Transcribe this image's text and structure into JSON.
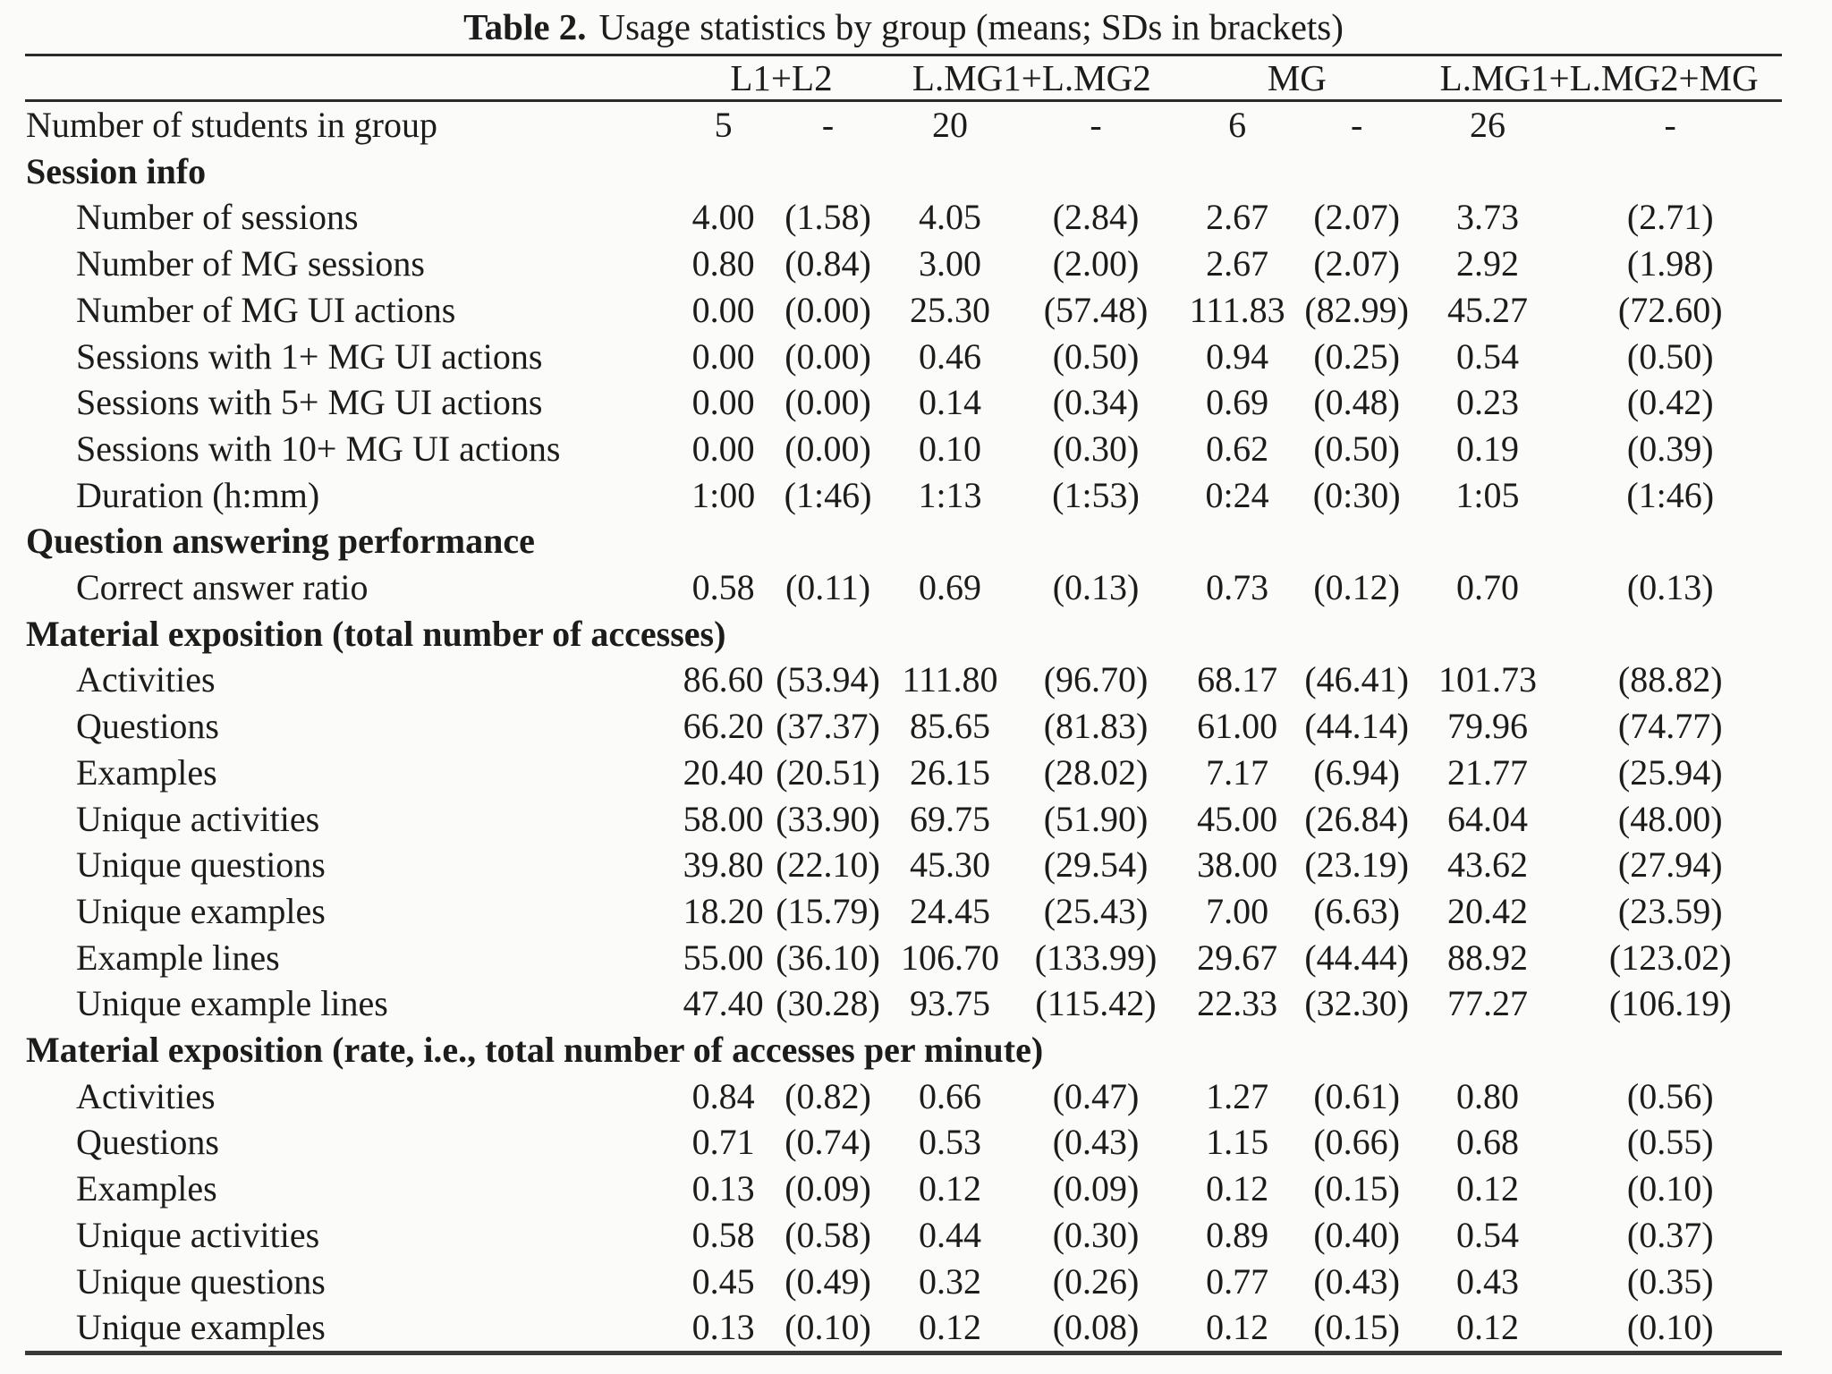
{
  "title": {
    "label": "Table 2.",
    "text": "Usage statistics by group (means; SDs in brackets)"
  },
  "columns": [
    "L1+L2",
    "L.MG1+L.MG2",
    "MG",
    "L.MG1+L.MG2+MG"
  ],
  "rows": [
    {
      "kind": "data",
      "indent": 0,
      "label": "Number of students in group",
      "values": [
        "5",
        "-",
        "20",
        "-",
        "6",
        "-",
        "26",
        "-"
      ]
    },
    {
      "kind": "section",
      "label": "Session info"
    },
    {
      "kind": "data",
      "indent": 1,
      "label": "Number of sessions",
      "values": [
        "4.00",
        "(1.58)",
        "4.05",
        "(2.84)",
        "2.67",
        "(2.07)",
        "3.73",
        "(2.71)"
      ]
    },
    {
      "kind": "data",
      "indent": 1,
      "label": "Number of MG sessions",
      "values": [
        "0.80",
        "(0.84)",
        "3.00",
        "(2.00)",
        "2.67",
        "(2.07)",
        "2.92",
        "(1.98)"
      ]
    },
    {
      "kind": "data",
      "indent": 1,
      "label": "Number of MG UI actions",
      "values": [
        "0.00",
        "(0.00)",
        "25.30",
        "(57.48)",
        "111.83",
        "(82.99)",
        "45.27",
        "(72.60)"
      ]
    },
    {
      "kind": "data",
      "indent": 1,
      "label": "Sessions with 1+ MG UI actions",
      "values": [
        "0.00",
        "(0.00)",
        "0.46",
        "(0.50)",
        "0.94",
        "(0.25)",
        "0.54",
        "(0.50)"
      ]
    },
    {
      "kind": "data",
      "indent": 1,
      "label": "Sessions with 5+ MG UI actions",
      "values": [
        "0.00",
        "(0.00)",
        "0.14",
        "(0.34)",
        "0.69",
        "(0.48)",
        "0.23",
        "(0.42)"
      ]
    },
    {
      "kind": "data",
      "indent": 1,
      "label": "Sessions with 10+ MG UI actions",
      "values": [
        "0.00",
        "(0.00)",
        "0.10",
        "(0.30)",
        "0.62",
        "(0.50)",
        "0.19",
        "(0.39)"
      ]
    },
    {
      "kind": "data",
      "indent": 1,
      "label": "Duration (h:mm)",
      "values": [
        "1:00",
        "(1:46)",
        "1:13",
        "(1:53)",
        "0:24",
        "(0:30)",
        "1:05",
        "(1:46)"
      ]
    },
    {
      "kind": "section",
      "label": "Question answering performance"
    },
    {
      "kind": "data",
      "indent": 1,
      "label": "Correct answer ratio",
      "values": [
        "0.58",
        "(0.11)",
        "0.69",
        "(0.13)",
        "0.73",
        "(0.12)",
        "0.70",
        "(0.13)"
      ]
    },
    {
      "kind": "section",
      "label": "Material exposition (total number of accesses)"
    },
    {
      "kind": "data",
      "indent": 1,
      "label": "Activities",
      "values": [
        "86.60",
        "(53.94)",
        "111.80",
        "(96.70)",
        "68.17",
        "(46.41)",
        "101.73",
        "(88.82)"
      ]
    },
    {
      "kind": "data",
      "indent": 1,
      "label": "Questions",
      "values": [
        "66.20",
        "(37.37)",
        "85.65",
        "(81.83)",
        "61.00",
        "(44.14)",
        "79.96",
        "(74.77)"
      ]
    },
    {
      "kind": "data",
      "indent": 1,
      "label": "Examples",
      "values": [
        "20.40",
        "(20.51)",
        "26.15",
        "(28.02)",
        "7.17",
        "(6.94)",
        "21.77",
        "(25.94)"
      ]
    },
    {
      "kind": "data",
      "indent": 1,
      "label": "Unique activities",
      "values": [
        "58.00",
        "(33.90)",
        "69.75",
        "(51.90)",
        "45.00",
        "(26.84)",
        "64.04",
        "(48.00)"
      ]
    },
    {
      "kind": "data",
      "indent": 1,
      "label": "Unique questions",
      "values": [
        "39.80",
        "(22.10)",
        "45.30",
        "(29.54)",
        "38.00",
        "(23.19)",
        "43.62",
        "(27.94)"
      ]
    },
    {
      "kind": "data",
      "indent": 1,
      "label": "Unique examples",
      "values": [
        "18.20",
        "(15.79)",
        "24.45",
        "(25.43)",
        "7.00",
        "(6.63)",
        "20.42",
        "(23.59)"
      ]
    },
    {
      "kind": "data",
      "indent": 1,
      "label": "Example lines",
      "values": [
        "55.00",
        "(36.10)",
        "106.70",
        "(133.99)",
        "29.67",
        "(44.44)",
        "88.92",
        "(123.02)"
      ]
    },
    {
      "kind": "data",
      "indent": 1,
      "label": "Unique example lines",
      "values": [
        "47.40",
        "(30.28)",
        "93.75",
        "(115.42)",
        "22.33",
        "(32.30)",
        "77.27",
        "(106.19)"
      ]
    },
    {
      "kind": "section",
      "label": "Material exposition (rate, i.e., total number of accesses per minute)"
    },
    {
      "kind": "data",
      "indent": 1,
      "label": "Activities",
      "values": [
        "0.84",
        "(0.82)",
        "0.66",
        "(0.47)",
        "1.27",
        "(0.61)",
        "0.80",
        "(0.56)"
      ]
    },
    {
      "kind": "data",
      "indent": 1,
      "label": "Questions",
      "values": [
        "0.71",
        "(0.74)",
        "0.53",
        "(0.43)",
        "1.15",
        "(0.66)",
        "0.68",
        "(0.55)"
      ]
    },
    {
      "kind": "data",
      "indent": 1,
      "label": "Examples",
      "values": [
        "0.13",
        "(0.09)",
        "0.12",
        "(0.09)",
        "0.12",
        "(0.15)",
        "0.12",
        "(0.10)"
      ]
    },
    {
      "kind": "data",
      "indent": 1,
      "label": "Unique activities",
      "values": [
        "0.58",
        "(0.58)",
        "0.44",
        "(0.30)",
        "0.89",
        "(0.40)",
        "0.54",
        "(0.37)"
      ]
    },
    {
      "kind": "data",
      "indent": 1,
      "label": "Unique questions",
      "values": [
        "0.45",
        "(0.49)",
        "0.32",
        "(0.26)",
        "0.77",
        "(0.43)",
        "0.43",
        "(0.35)"
      ]
    },
    {
      "kind": "data",
      "indent": 1,
      "label": "Unique examples",
      "values": [
        "0.13",
        "(0.10)",
        "0.12",
        "(0.08)",
        "0.12",
        "(0.15)",
        "0.12",
        "(0.10)"
      ]
    }
  ]
}
